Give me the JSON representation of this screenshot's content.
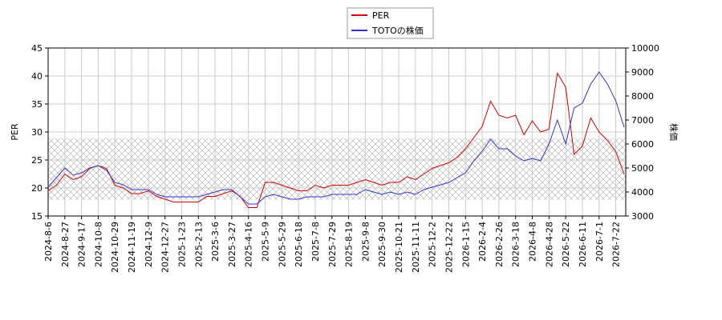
{
  "chart_data": {
    "type": "line",
    "ylabel": "PER",
    "y2label": "株価",
    "ylim": [
      15,
      45
    ],
    "yticks": [
      15,
      20,
      25,
      30,
      35,
      40,
      45
    ],
    "y2lim": [
      3000,
      10000
    ],
    "y2ticks": [
      3000,
      4000,
      5000,
      6000,
      7000,
      8000,
      9000,
      10000
    ],
    "grid": true,
    "legend": "top",
    "band": [
      17.9,
      28.9
    ],
    "categories": [
      "2024-8-6",
      null,
      "2024-8-27",
      null,
      "2024-9-17",
      null,
      "2024-10-8",
      null,
      "2024-10-29",
      null,
      "2024-11-19",
      null,
      "2024-12-9",
      null,
      "2024-12-27",
      null,
      "2025-1-23",
      null,
      "2025-2-13",
      null,
      "2025-3-6",
      null,
      "2025-3-27",
      null,
      "2025-4-16",
      null,
      "2025-5-9",
      null,
      "2025-5-29",
      null,
      "2025-6-18",
      null,
      "2025-7-8",
      null,
      "2025-7-29",
      null,
      "2025-8-19",
      null,
      "2025-9-8",
      null,
      "2025-9-30",
      null,
      "2025-10-21",
      null,
      "2025-11-11",
      null,
      "2025-12-2",
      null,
      "2025-12-22",
      null,
      "2026-1-15",
      null,
      "2026-2-4",
      null,
      "2026-2-26",
      null,
      "2026-3-18",
      null,
      "2026-4-8",
      null,
      "2026-4-28",
      null,
      "2026-5-22",
      null,
      "2026-6-11",
      null,
      "2026-7-1",
      null,
      "2026-7-22",
      null
    ],
    "series": [
      {
        "name": "PER",
        "color": "#cc0000",
        "values": [
          19.5,
          20.5,
          22.5,
          21.5,
          22,
          23.5,
          24,
          23.5,
          20.5,
          20,
          19,
          19,
          19.5,
          18.5,
          18,
          17.5,
          17.5,
          17.5,
          17.5,
          18.5,
          18.5,
          19,
          19.5,
          18.5,
          16.5,
          16.5,
          21,
          21,
          20.5,
          20,
          19.5,
          19.5,
          20.5,
          20,
          20.5,
          20.5,
          20.5,
          21,
          21.5,
          21,
          20.5,
          21,
          21,
          22,
          21.5,
          22.5,
          23.5,
          24,
          24.5,
          25.5,
          27,
          29,
          31,
          35.5,
          33,
          32.5,
          33,
          29.5,
          32,
          30,
          30.5,
          40.5,
          38,
          26,
          27.5,
          32.5,
          30,
          28.5,
          26.5,
          22.5
        ]
      },
      {
        "name": "TOTOの株価",
        "color": "#3333cc",
        "axis": "y2",
        "values": [
          4200,
          4600,
          5000,
          4700,
          4800,
          5000,
          5100,
          4900,
          4400,
          4300,
          4100,
          4100,
          4100,
          3900,
          3800,
          3800,
          3800,
          3800,
          3800,
          3900,
          4000,
          4100,
          4100,
          3800,
          3500,
          3500,
          3800,
          3900,
          3800,
          3700,
          3700,
          3800,
          3800,
          3800,
          3900,
          3900,
          3900,
          3900,
          4100,
          4000,
          3900,
          4000,
          3900,
          4000,
          3900,
          4100,
          4200,
          4300,
          4400,
          4600,
          4800,
          5300,
          5700,
          6200,
          5800,
          5800,
          5500,
          5300,
          5400,
          5300,
          6000,
          7000,
          6000,
          7500,
          7700,
          8500,
          9000,
          8500,
          7800,
          6700
        ]
      }
    ]
  }
}
